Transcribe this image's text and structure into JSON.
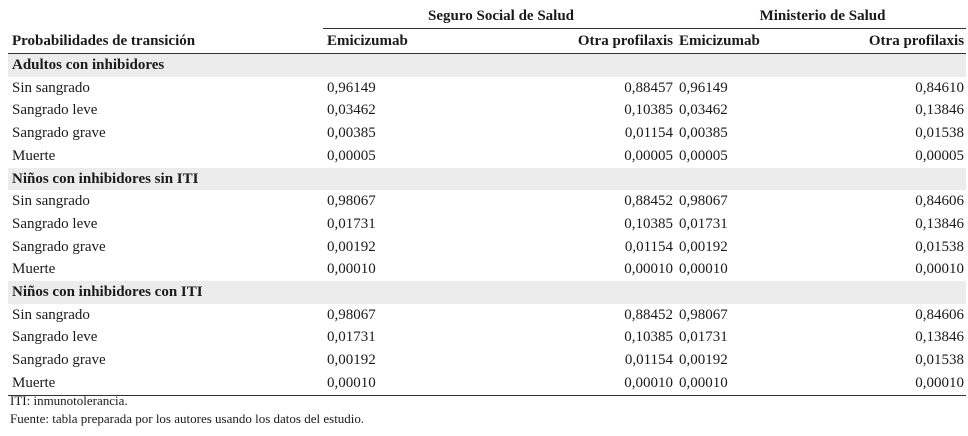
{
  "table": {
    "groups": [
      "Seguro Social de Salud",
      "Ministerio de Salud"
    ],
    "columns": [
      "Probabilidades de transición",
      "Emicizumab",
      "Otra profilaxis",
      "Emicizumab",
      "Otra profilaxis"
    ],
    "sections": [
      {
        "title": "Adultos con inhibidores",
        "rows": [
          [
            "Sin sangrado",
            "0,96149",
            "0,88457",
            "0,96149",
            "0,84610"
          ],
          [
            "Sangrado leve",
            "0,03462",
            "0,10385",
            "0,03462",
            "0,13846"
          ],
          [
            "Sangrado grave",
            "0,00385",
            "0,01154",
            "0,00385",
            "0,01538"
          ],
          [
            "Muerte",
            "0,00005",
            "0,00005",
            "0,00005",
            "0,00005"
          ]
        ]
      },
      {
        "title": "Niños con inhibidores sin ITI",
        "rows": [
          [
            "Sin sangrado",
            "0,98067",
            "0,88452",
            "0,98067",
            "0,84606"
          ],
          [
            "Sangrado leve",
            "0,01731",
            "0,10385",
            "0,01731",
            "0,13846"
          ],
          [
            "Sangrado grave",
            "0,00192",
            "0,01154",
            "0,00192",
            "0,01538"
          ],
          [
            "Muerte",
            "0,00010",
            "0,00010",
            "0,00010",
            "0,00010"
          ]
        ]
      },
      {
        "title": "Niños con inhibidores con ITI",
        "rows": [
          [
            "Sin sangrado",
            "0,98067",
            "0,88452",
            "0,98067",
            "0,84606"
          ],
          [
            "Sangrado leve",
            "0,01731",
            "0,10385",
            "0,01731",
            "0,13846"
          ],
          [
            "Sangrado grave",
            "0,00192",
            "0,01154",
            "0,00192",
            "0,01538"
          ],
          [
            "Muerte",
            "0,00010",
            "0,00010",
            "0,00010",
            "0,00010"
          ]
        ]
      }
    ]
  },
  "notes": {
    "abbrev": "ITI: inmunotolerancia.",
    "source": "Fuente: tabla preparada por los autores usando los datos del estudio."
  }
}
